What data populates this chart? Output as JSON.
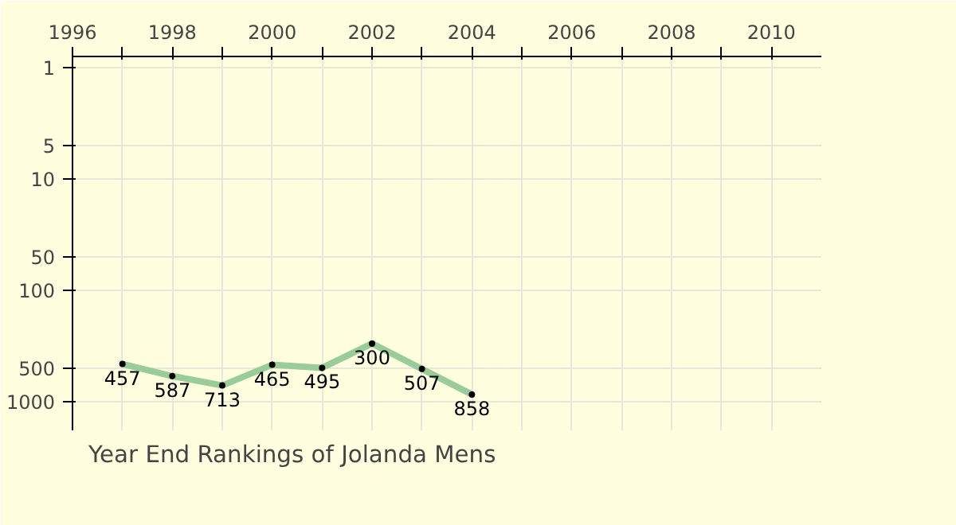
{
  "chart_data": {
    "type": "line",
    "title": "Year End Rankings of  Jolanda Mens",
    "x": [
      1997,
      1998,
      1999,
      2000,
      2001,
      2002,
      2003,
      2004
    ],
    "series": [
      {
        "color": "#99cc99",
        "values": [
          457,
          587,
          713,
          465,
          495,
          300,
          507,
          858
        ]
      }
    ],
    "xlim": [
      1996,
      2011
    ],
    "xticks": [
      1996,
      {
        "value": 1997,
        "label": null
      },
      1998,
      {
        "value": 1999,
        "label": null
      },
      2000,
      {
        "value": 2001,
        "label": null
      },
      2002,
      {
        "value": 2003,
        "label": null
      },
      2004,
      {
        "value": 2005,
        "label": null
      },
      2006,
      {
        "value": 2007,
        "label": null
      },
      2008,
      {
        "value": 2009,
        "label": null
      },
      2010
    ],
    "ylim": [
      1800,
      0.8
    ],
    "yticks": [
      1,
      5,
      10,
      50,
      100,
      500,
      1000
    ],
    "log": "y",
    "grid": true,
    "marker": "circle",
    "line_style": "solid",
    "data_labels": true
  }
}
